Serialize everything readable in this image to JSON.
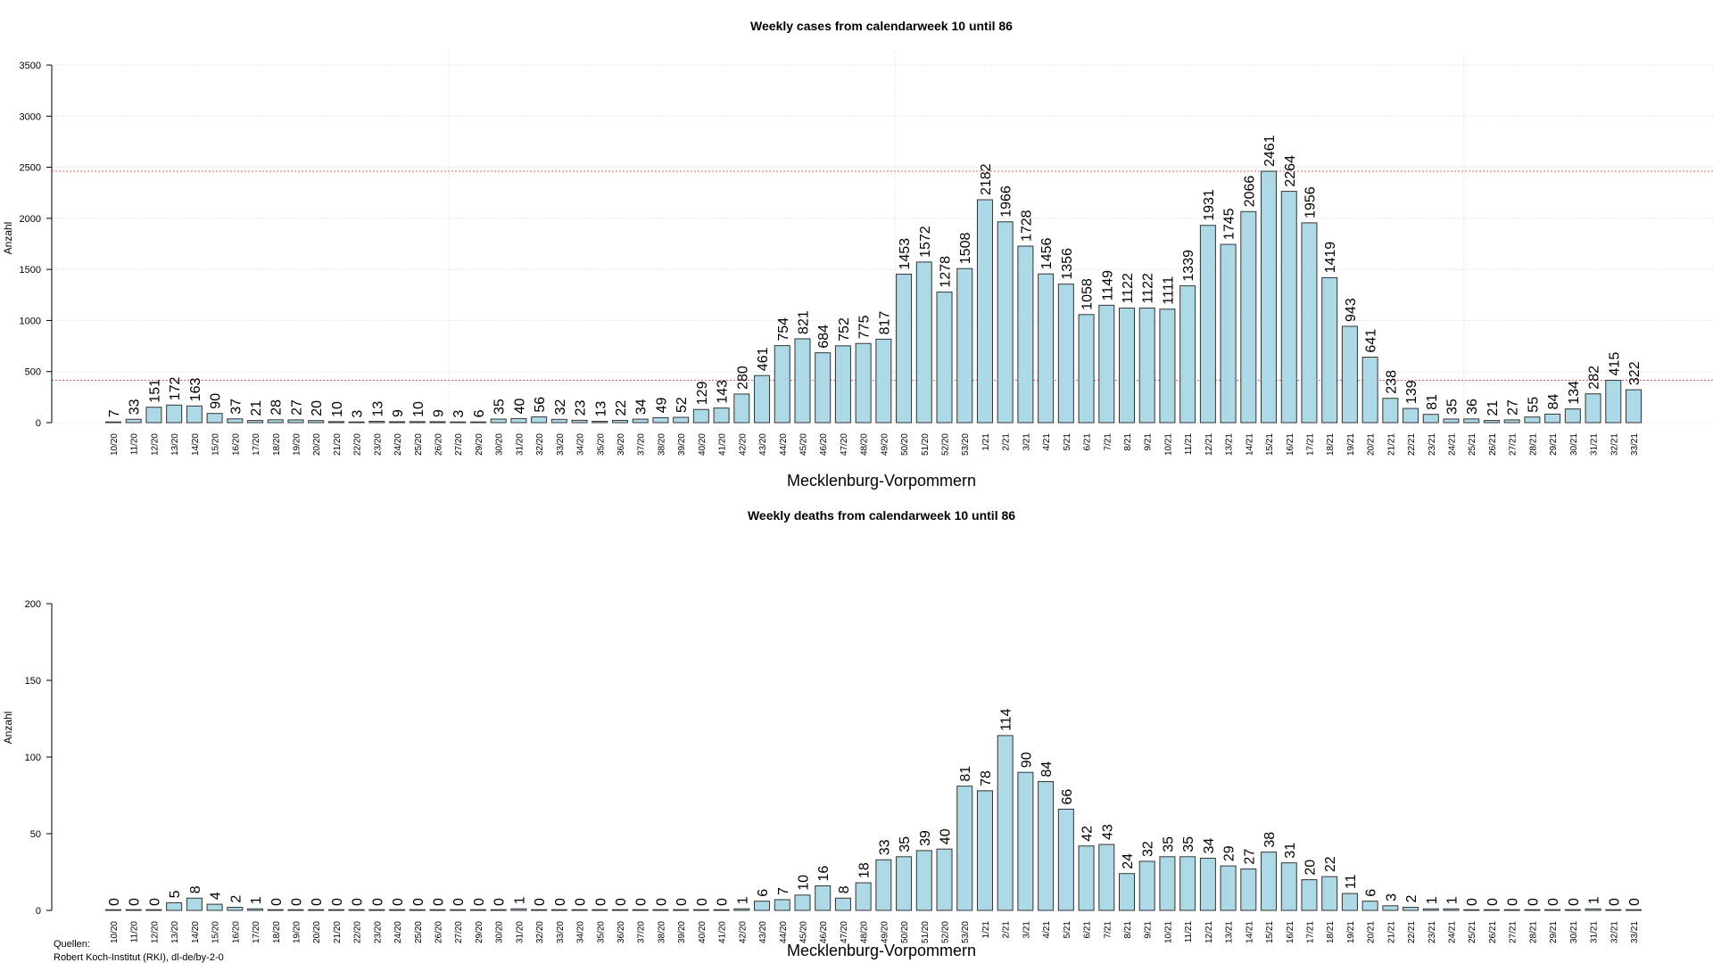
{
  "chart_data": [
    {
      "type": "bar",
      "title": "Weekly cases from calendarweek 10 until 86",
      "xlabel": "Mecklenburg-Vorpommern",
      "ylabel": "Anzahl",
      "ylim": [
        0,
        3500
      ],
      "yticks": [
        "0",
        "500",
        "1000",
        "1500",
        "2000",
        "2500",
        "3000",
        "3500"
      ],
      "grid": true,
      "reference_lines": [
        {
          "value": 2461,
          "color": "#e06060"
        },
        {
          "value": 415,
          "color": "#e06060"
        }
      ],
      "bar_color": "#add8e6",
      "categories": [
        "10/20",
        "11/20",
        "12/20",
        "13/20",
        "14/20",
        "15/20",
        "16/20",
        "17/20",
        "18/20",
        "19/20",
        "20/20",
        "21/20",
        "22/20",
        "23/20",
        "24/20",
        "25/20",
        "26/20",
        "27/20",
        "29/20",
        "30/20",
        "31/20",
        "32/20",
        "33/20",
        "34/20",
        "35/20",
        "36/20",
        "37/20",
        "38/20",
        "39/20",
        "40/20",
        "41/20",
        "42/20",
        "43/20",
        "44/20",
        "45/20",
        "46/20",
        "47/20",
        "48/20",
        "49/20",
        "50/20",
        "51/20",
        "52/20",
        "53/20",
        "1/21",
        "2/21",
        "3/21",
        "4/21",
        "5/21",
        "6/21",
        "7/21",
        "8/21",
        "9/21",
        "10/21",
        "11/21",
        "12/21",
        "13/21",
        "14/21",
        "15/21",
        "16/21",
        "17/21",
        "18/21",
        "19/21",
        "20/21",
        "21/21",
        "22/21",
        "23/21",
        "24/21",
        "25/21",
        "26/21",
        "27/21",
        "28/21",
        "29/21",
        "30/21",
        "31/21",
        "32/21",
        "33/21"
      ],
      "values": [
        7,
        33,
        151,
        172,
        163,
        90,
        37,
        21,
        28,
        27,
        20,
        10,
        3,
        13,
        9,
        10,
        9,
        3,
        6,
        35,
        40,
        56,
        32,
        23,
        13,
        22,
        34,
        49,
        52,
        129,
        143,
        280,
        461,
        754,
        821,
        684,
        752,
        775,
        817,
        1453,
        1572,
        1278,
        1508,
        2182,
        1966,
        1728,
        1456,
        1356,
        1058,
        1149,
        1122,
        1122,
        1111,
        1339,
        1931,
        1745,
        2066,
        2461,
        2264,
        1956,
        1419,
        943,
        641,
        238,
        139,
        81,
        35,
        36,
        21,
        27,
        55,
        84,
        134,
        282,
        415,
        322
      ]
    },
    {
      "type": "bar",
      "title": "Weekly deaths from calendarweek 10 until 86",
      "xlabel": "Mecklenburg-Vorpommern",
      "ylabel": "Anzahl",
      "ylim": [
        0,
        200
      ],
      "yticks": [
        "0",
        "50",
        "100",
        "150",
        "200"
      ],
      "grid": false,
      "bar_color": "#add8e6",
      "categories": [
        "10/20",
        "11/20",
        "12/20",
        "13/20",
        "14/20",
        "15/20",
        "16/20",
        "17/20",
        "18/20",
        "19/20",
        "20/20",
        "21/20",
        "22/20",
        "23/20",
        "24/20",
        "25/20",
        "26/20",
        "27/20",
        "29/20",
        "30/20",
        "31/20",
        "32/20",
        "33/20",
        "34/20",
        "35/20",
        "36/20",
        "37/20",
        "38/20",
        "39/20",
        "40/20",
        "41/20",
        "42/20",
        "43/20",
        "44/20",
        "45/20",
        "46/20",
        "47/20",
        "48/20",
        "49/20",
        "50/20",
        "51/20",
        "52/20",
        "53/20",
        "1/21",
        "2/21",
        "3/21",
        "4/21",
        "5/21",
        "6/21",
        "7/21",
        "8/21",
        "9/21",
        "10/21",
        "11/21",
        "12/21",
        "13/21",
        "14/21",
        "15/21",
        "16/21",
        "17/21",
        "18/21",
        "19/21",
        "20/21",
        "21/21",
        "22/21",
        "23/21",
        "24/21",
        "25/21",
        "26/21",
        "27/21",
        "28/21",
        "29/21",
        "30/21",
        "31/21",
        "32/21",
        "33/21"
      ],
      "values": [
        0,
        0,
        0,
        5,
        8,
        4,
        2,
        1,
        0,
        0,
        0,
        0,
        0,
        0,
        0,
        0,
        0,
        0,
        0,
        0,
        1,
        0,
        0,
        0,
        0,
        0,
        0,
        0,
        0,
        0,
        0,
        1,
        6,
        7,
        10,
        16,
        8,
        18,
        33,
        35,
        39,
        40,
        81,
        78,
        114,
        90,
        84,
        66,
        42,
        43,
        24,
        32,
        35,
        35,
        34,
        29,
        27,
        38,
        31,
        20,
        22,
        11,
        6,
        3,
        2,
        1,
        1,
        0,
        0,
        0,
        0,
        0,
        0,
        1,
        0,
        0
      ]
    }
  ],
  "sources": {
    "line1": "Quellen:",
    "line2": "Robert Koch-Institut (RKI), dl-de/by-2-0"
  }
}
